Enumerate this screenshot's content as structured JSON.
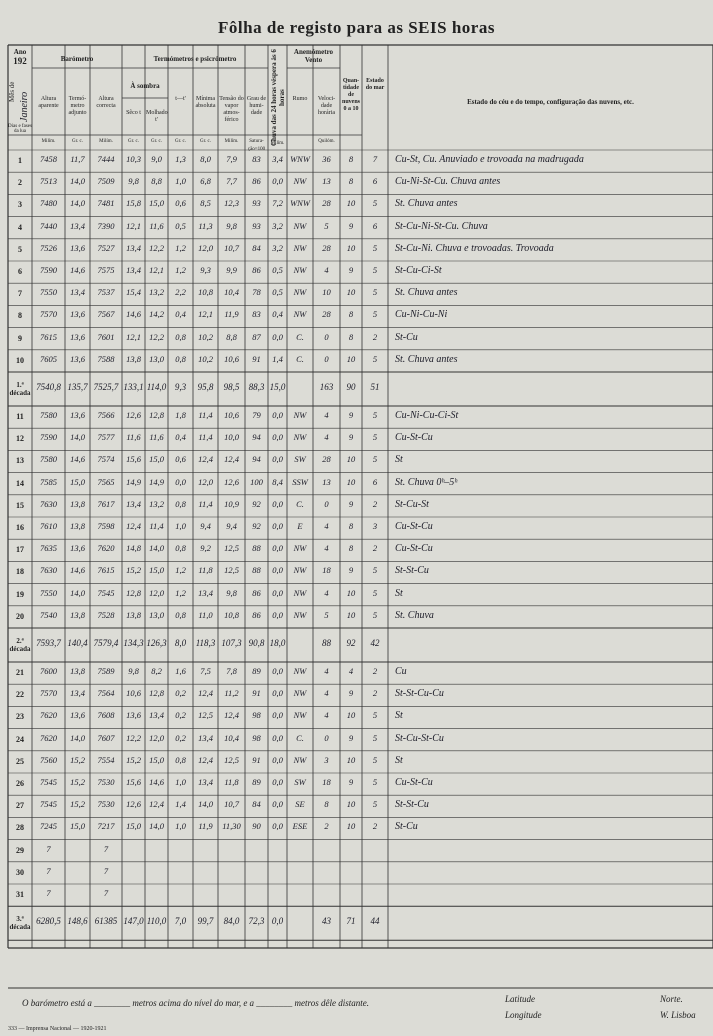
{
  "header": {
    "title": "Fôlha de registo para as SEIS horas",
    "year_label": "Ano",
    "year": "192",
    "month_label": "Mês de",
    "month": "Janeiro",
    "groups": {
      "barometer": "Barómetro",
      "thermometers": "Termómetros e psicrómetro",
      "shade": "À sombra",
      "anemometer": "Anemómetro\nVento"
    }
  },
  "columns": [
    "Dias e fases da lua",
    "Altura aparente",
    "Termó-metro adjunto",
    "Altura correcta",
    "Sêco t",
    "Molhado t'",
    "t—t'",
    "Mínima absoluta",
    "Tensão do vapor atmos-férico",
    "Grau de humi-dade",
    "Chuva das 24 horas véspera às 6 horas",
    "Rumo",
    "Veloci-dade horária",
    "Quan-tidade de nuvens 0 a 10",
    "Estado do mar",
    "Estado do céu e do tempo, configuração das nuvens, etc."
  ],
  "units": [
    "Milím.",
    "Gr. c.",
    "Milím.",
    "Gr. c.",
    "Gr. c.",
    "Gr. c.",
    "Gr. c.",
    "Milím.",
    "Satura-ção=100",
    "Milím.",
    "Quilóm."
  ],
  "table": {
    "rows": [
      {
        "label": "1",
        "cells": [
          "7458",
          "11,7",
          "7444",
          "10,3",
          "9,0",
          "1,3",
          "8,0",
          "7,9",
          "83",
          "3,4",
          "WNW",
          "36",
          "8",
          "7",
          "Cu-St, Cu. Anuviado e trovoada na madrugada"
        ]
      },
      {
        "label": "2",
        "cells": [
          "7513",
          "14,0",
          "7509",
          "9,8",
          "8,8",
          "1,0",
          "6,8",
          "7,7",
          "86",
          "0,0",
          "NW",
          "13",
          "8",
          "6",
          "Cu-Ni-St-Cu. Chuva antes"
        ]
      },
      {
        "label": "3",
        "cells": [
          "7480",
          "14,0",
          "7481",
          "15,8",
          "15,0",
          "0,6",
          "8,5",
          "12,3",
          "93",
          "7,2",
          "WNW",
          "28",
          "10",
          "5",
          "St. Chuva antes"
        ]
      },
      {
        "label": "4",
        "cells": [
          "7440",
          "13,4",
          "7390",
          "12,1",
          "11,6",
          "0,5",
          "11,3",
          "9,8",
          "93",
          "3,2",
          "NW",
          "5",
          "9",
          "6",
          "St-Cu-Ni-St-Cu. Chuva"
        ]
      },
      {
        "label": "5",
        "cells": [
          "7526",
          "13,6",
          "7527",
          "13,4",
          "12,2",
          "1,2",
          "12,0",
          "10,7",
          "84",
          "3,2",
          "NW",
          "28",
          "10",
          "5",
          "St-Cu-Ni. Chuva e trovoadas. Trovoada"
        ]
      },
      {
        "label": "6",
        "cells": [
          "7590",
          "14,6",
          "7575",
          "13,4",
          "12,1",
          "1,2",
          "9,3",
          "9,9",
          "86",
          "0,5",
          "NW",
          "4",
          "9",
          "5",
          "St-Cu-Ci-St"
        ]
      },
      {
        "label": "7",
        "cells": [
          "7550",
          "13,4",
          "7537",
          "15,4",
          "13,2",
          "2,2",
          "10,8",
          "10,4",
          "78",
          "0,5",
          "NW",
          "10",
          "10",
          "5",
          "St. Chuva antes"
        ]
      },
      {
        "label": "8",
        "cells": [
          "7570",
          "13,6",
          "7567",
          "14,6",
          "14,2",
          "0,4",
          "12,1",
          "11,9",
          "83",
          "0,4",
          "NW",
          "28",
          "8",
          "5",
          "Cu-Ni-Cu-Ni"
        ]
      },
      {
        "label": "9",
        "cells": [
          "7615",
          "13,6",
          "7601",
          "12,1",
          "12,2",
          "0,8",
          "10,2",
          "8,8",
          "87",
          "0,0",
          "C.",
          "0",
          "8",
          "2",
          "St-Cu"
        ]
      },
      {
        "label": "10",
        "cells": [
          "7605",
          "13,6",
          "7588",
          "13,8",
          "13,0",
          "0,8",
          "10,2",
          "10,6",
          "91",
          "1,4",
          "C.",
          "0",
          "10",
          "5",
          "St. Chuva antes"
        ]
      },
      {
        "label": "1.ª\ndécada",
        "cells": [
          "7540,8",
          "135,7",
          "7525,7",
          "133,1",
          "114,0",
          "9,3",
          "95,8",
          "98,5",
          "88,3",
          "15,0",
          "",
          "163",
          "90",
          "51",
          ""
        ]
      },
      {
        "label": "11",
        "cells": [
          "7580",
          "13,6",
          "7566",
          "12,6",
          "12,8",
          "1,8",
          "11,4",
          "10,6",
          "79",
          "0,0",
          "NW",
          "4",
          "9",
          "5",
          "Cu-Ni-Cu-Ci-St"
        ]
      },
      {
        "label": "12",
        "cells": [
          "7590",
          "14,0",
          "7577",
          "11,6",
          "11,6",
          "0,4",
          "11,4",
          "10,0",
          "94",
          "0,0",
          "NW",
          "4",
          "9",
          "5",
          "Cu-St-Cu"
        ]
      },
      {
        "label": "13",
        "cells": [
          "7580",
          "14,6",
          "7574",
          "15,6",
          "15,0",
          "0,6",
          "12,4",
          "12,4",
          "94",
          "0,0",
          "SW",
          "28",
          "10",
          "5",
          "St"
        ]
      },
      {
        "label": "14",
        "cells": [
          "7585",
          "15,0",
          "7565",
          "14,9",
          "14,9",
          "0,0",
          "12,0",
          "12,6",
          "100",
          "8,4",
          "SSW",
          "13",
          "10",
          "6",
          "St. Chuva 0ʰ–5ʰ"
        ]
      },
      {
        "label": "15",
        "cells": [
          "7630",
          "13,8",
          "7617",
          "13,4",
          "13,2",
          "0,8",
          "11,4",
          "10,9",
          "92",
          "0,0",
          "C.",
          "0",
          "9",
          "2",
          "St-Cu-St"
        ]
      },
      {
        "label": "16",
        "cells": [
          "7610",
          "13,8",
          "7598",
          "12,4",
          "11,4",
          "1,0",
          "9,4",
          "9,4",
          "92",
          "0,0",
          "E",
          "4",
          "8",
          "3",
          "Cu-St-Cu"
        ]
      },
      {
        "label": "17",
        "cells": [
          "7635",
          "13,6",
          "7620",
          "14,8",
          "14,0",
          "0,8",
          "9,2",
          "12,5",
          "88",
          "0,0",
          "NW",
          "4",
          "8",
          "2",
          "Cu-St-Cu"
        ]
      },
      {
        "label": "18",
        "cells": [
          "7630",
          "14,6",
          "7615",
          "15,2",
          "15,0",
          "1,2",
          "11,8",
          "12,5",
          "88",
          "0,0",
          "NW",
          "18",
          "9",
          "5",
          "St-St-Cu"
        ]
      },
      {
        "label": "19",
        "cells": [
          "7550",
          "14,0",
          "7545",
          "12,8",
          "12,0",
          "1,2",
          "13,4",
          "9,8",
          "86",
          "0,0",
          "NW",
          "4",
          "10",
          "5",
          "St"
        ]
      },
      {
        "label": "20",
        "cells": [
          "7540",
          "13,8",
          "7528",
          "13,8",
          "13,0",
          "0,8",
          "11,0",
          "10,8",
          "86",
          "0,0",
          "NW",
          "5",
          "10",
          "5",
          "St. Chuva"
        ]
      },
      {
        "label": "2.ª\ndécada",
        "cells": [
          "7593,7",
          "140,4",
          "7579,4",
          "134,3",
          "126,3",
          "8,0",
          "118,3",
          "107,3",
          "90,8",
          "18,0",
          "",
          "88",
          "92",
          "42",
          ""
        ]
      },
      {
        "label": "21",
        "cells": [
          "7600",
          "13,8",
          "7589",
          "9,8",
          "8,2",
          "1,6",
          "7,5",
          "7,8",
          "89",
          "0,0",
          "NW",
          "4",
          "4",
          "2",
          "Cu"
        ]
      },
      {
        "label": "22",
        "cells": [
          "7570",
          "13,4",
          "7564",
          "10,6",
          "12,8",
          "0,2",
          "12,4",
          "11,2",
          "91",
          "0,0",
          "NW",
          "4",
          "9",
          "2",
          "St-St-Cu-Cu"
        ]
      },
      {
        "label": "23",
        "cells": [
          "7620",
          "13,6",
          "7608",
          "13,6",
          "13,4",
          "0,2",
          "12,5",
          "12,4",
          "98",
          "0,0",
          "NW",
          "4",
          "10",
          "5",
          "St"
        ]
      },
      {
        "label": "24",
        "cells": [
          "7620",
          "14,0",
          "7607",
          "12,2",
          "12,0",
          "0,2",
          "13,4",
          "10,4",
          "98",
          "0,0",
          "C.",
          "0",
          "9",
          "5",
          "St-Cu-St-Cu"
        ]
      },
      {
        "label": "25",
        "cells": [
          "7560",
          "15,2",
          "7554",
          "15,2",
          "15,0",
          "0,8",
          "12,4",
          "12,5",
          "91",
          "0,0",
          "NW",
          "3",
          "10",
          "5",
          "St"
        ]
      },
      {
        "label": "26",
        "cells": [
          "7545",
          "15,2",
          "7530",
          "15,6",
          "14,6",
          "1,0",
          "13,4",
          "11,8",
          "89",
          "0,0",
          "SW",
          "18",
          "9",
          "5",
          "Cu-St-Cu"
        ]
      },
      {
        "label": "27",
        "cells": [
          "7545",
          "15,2",
          "7530",
          "12,6",
          "12,4",
          "1,4",
          "14,0",
          "10,7",
          "84",
          "0,0",
          "SE",
          "8",
          "10",
          "5",
          "St-St-Cu"
        ]
      },
      {
        "label": "28",
        "cells": [
          "7245",
          "15,0",
          "7217",
          "15,0",
          "14,0",
          "1,0",
          "11,9",
          "11,30",
          "90",
          "0,0",
          "ESE",
          "2",
          "10",
          "2",
          "St-Cu"
        ]
      },
      {
        "label": "29",
        "cells": [
          "7",
          "",
          "7",
          "",
          "",
          "",
          "",
          "",
          "",
          "",
          "",
          "",
          "",
          "",
          ""
        ]
      },
      {
        "label": "30",
        "cells": [
          "7",
          "",
          "7",
          "",
          "",
          "",
          "",
          "",
          "",
          "",
          "",
          "",
          "",
          "",
          ""
        ]
      },
      {
        "label": "31",
        "cells": [
          "7",
          "",
          "7",
          "",
          "",
          "",
          "",
          "",
          "",
          "",
          "",
          "",
          "",
          "",
          ""
        ]
      },
      {
        "label": "3.ª\ndécada",
        "cells": [
          "6280,5",
          "148,6",
          "61385",
          "147,0",
          "110,0",
          "7,0",
          "99,7",
          "84,0",
          "72,3",
          "0,0",
          "",
          "43",
          "71",
          "44",
          ""
        ]
      }
    ]
  },
  "footer": {
    "barometer_note": "O barómetro está a ________ metros acima do nível do mar, e a ________ metros dêle distante.",
    "latitude": "Latitude",
    "north": "Norte.",
    "longitude": "Longitude",
    "west": "W. Lisboa",
    "imprint": "333 — Imprensa Nacional — 1920-1921"
  }
}
